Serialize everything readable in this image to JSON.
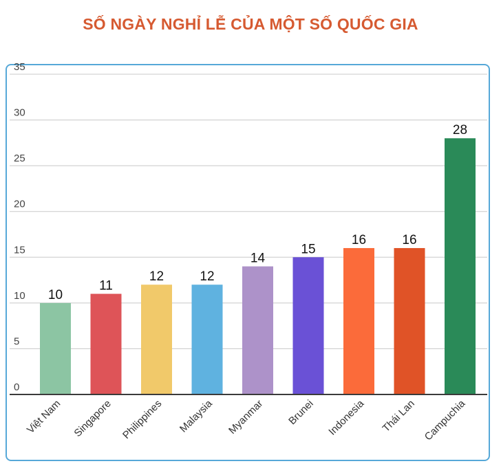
{
  "title": "SỐ NGÀY NGHỈ LỄ CỦA MỘT SỐ QUỐC GIA",
  "chart_data": {
    "type": "bar",
    "title": "SỐ NGÀY NGHỈ LỄ CỦA MỘT SỐ QUỐC GIA",
    "categories": [
      "Việt Nam",
      "Singapore",
      "Philippines",
      "Malaysia",
      "Myanmar",
      "Brunei",
      "Indonesia",
      "Thái Lan",
      "Campuchia"
    ],
    "values": [
      10,
      11,
      12,
      12,
      14,
      15,
      16,
      16,
      28
    ],
    "colors": [
      "#8cc5a3",
      "#de5458",
      "#f1c96a",
      "#5fb2e0",
      "#ad92c9",
      "#6a51d6",
      "#fb6b3a",
      "#e05327",
      "#2a8a58"
    ],
    "yticks": [
      0,
      5,
      10,
      15,
      20,
      25,
      30,
      35
    ],
    "ylim": [
      0,
      35
    ],
    "grid": true,
    "xlabel": "",
    "ylabel": ""
  }
}
